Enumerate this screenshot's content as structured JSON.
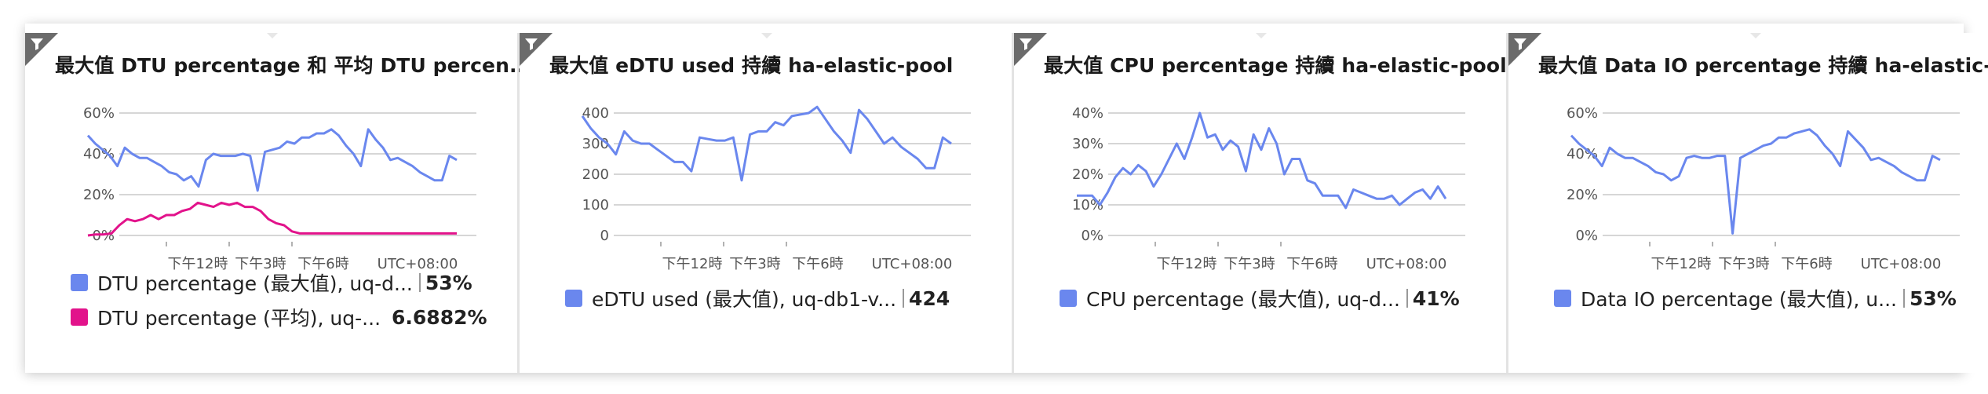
{
  "colors": {
    "blue": "#6a87ee",
    "magenta": "#e2138b"
  },
  "icons": {
    "filter": "filter-funnel-icon"
  },
  "tiles": [
    {
      "title": "最大值 DTU percentage 和 平均 DTU percen...",
      "legend": [
        {
          "label": "DTU percentage (最大值), uq-d...",
          "value": "53%",
          "color": "#6a87ee"
        },
        {
          "label": "DTU percentage (平均), uq-...",
          "value": "6.6882%",
          "color": "#e2138b"
        }
      ]
    },
    {
      "title": "最大值 eDTU used 持續 ha-elastic-pool",
      "legend": [
        {
          "label": "eDTU used (最大值), uq-db1-v...",
          "value": "424",
          "color": "#6a87ee"
        }
      ]
    },
    {
      "title": "最大值 CPU percentage 持續 ha-elastic-pool",
      "legend": [
        {
          "label": "CPU percentage (最大值), uq-d...",
          "value": "41%",
          "color": "#6a87ee"
        }
      ]
    },
    {
      "title": "最大值 Data IO percentage 持續 ha-elastic-...",
      "legend": [
        {
          "label": "Data IO percentage (最大值), u...",
          "value": "53%",
          "color": "#6a87ee"
        }
      ]
    }
  ],
  "chart_data": [
    {
      "type": "line",
      "yticks": [
        "60%",
        "40%",
        "20%",
        "0%"
      ],
      "ylim": [
        0,
        60
      ],
      "xticks": [
        "下午12時",
        "下午3時",
        "下午6時",
        "UTC+08:00"
      ],
      "series": [
        {
          "name": "DTU percentage (最大值), uq-d...",
          "color": "#6a87ee",
          "values": [
            49,
            45,
            42,
            39,
            34,
            43,
            40,
            38,
            38,
            36,
            34,
            31,
            30,
            27,
            29,
            24,
            37,
            40,
            39,
            39,
            39,
            40,
            39,
            22,
            41,
            42,
            43,
            46,
            45,
            48,
            48,
            50,
            50,
            52,
            49,
            44,
            40,
            34,
            52,
            47,
            43,
            37,
            38,
            36,
            34,
            31,
            29,
            27,
            27,
            39,
            37
          ]
        },
        {
          "name": "DTU percentage (平均), uq-...",
          "color": "#e2138b",
          "values": [
            0,
            0.5,
            0.5,
            1,
            5,
            8,
            7,
            8,
            10,
            8,
            10,
            10,
            12,
            13,
            16,
            15,
            14,
            16,
            15,
            16,
            14,
            14,
            12,
            8,
            6,
            5,
            2,
            1,
            1,
            1,
            1,
            1,
            1,
            1,
            1,
            1,
            1,
            1,
            1,
            1,
            1,
            1,
            1,
            1,
            1,
            1,
            1,
            1
          ]
        }
      ]
    },
    {
      "type": "line",
      "yticks": [
        "400",
        "300",
        "200",
        "100",
        "0"
      ],
      "ylim": [
        0,
        400
      ],
      "xticks": [
        "下午12時",
        "下午3時",
        "下午6時",
        "UTC+08:00"
      ],
      "series": [
        {
          "name": "eDTU used (最大值), uq-db1-v...",
          "color": "#6a87ee",
          "values": [
            390,
            350,
            320,
            300,
            265,
            340,
            310,
            300,
            300,
            280,
            260,
            240,
            240,
            210,
            320,
            315,
            310,
            310,
            320,
            180,
            330,
            340,
            340,
            370,
            360,
            390,
            395,
            400,
            420,
            380,
            340,
            310,
            270,
            410,
            380,
            340,
            300,
            320,
            290,
            270,
            250,
            220,
            220,
            320,
            300
          ]
        }
      ]
    },
    {
      "type": "line",
      "yticks": [
        "40%",
        "30%",
        "20%",
        "10%",
        "0%"
      ],
      "ylim": [
        0,
        40
      ],
      "xticks": [
        "下午12時",
        "下午3時",
        "下午6時",
        "UTC+08:00"
      ],
      "series": [
        {
          "name": "CPU percentage (最大值), uq-d...",
          "color": "#6a87ee",
          "values": [
            13,
            13,
            13,
            10,
            14,
            19,
            22,
            20,
            23,
            21,
            16,
            20,
            25,
            30,
            25,
            32,
            40,
            32,
            33,
            28,
            31,
            29,
            21,
            33,
            28,
            35,
            30,
            20,
            25,
            25,
            18,
            17,
            13,
            13,
            13,
            9,
            15,
            14,
            13,
            12,
            12,
            13,
            10,
            12,
            14,
            15,
            12,
            16,
            12
          ]
        }
      ]
    },
    {
      "type": "line",
      "yticks": [
        "60%",
        "40%",
        "20%",
        "0%"
      ],
      "ylim": [
        0,
        60
      ],
      "xticks": [
        "下午12時",
        "下午3時",
        "下午6時",
        "UTC+08:00"
      ],
      "series": [
        {
          "name": "Data IO percentage (最大值), u...",
          "color": "#6a87ee",
          "values": [
            49,
            45,
            42,
            39,
            34,
            43,
            40,
            38,
            38,
            36,
            34,
            31,
            30,
            27,
            29,
            38,
            39,
            38,
            38,
            39,
            39,
            1,
            38,
            40,
            42,
            44,
            45,
            48,
            48,
            50,
            51,
            52,
            49,
            44,
            40,
            34,
            51,
            47,
            43,
            37,
            38,
            36,
            34,
            31,
            29,
            27,
            27,
            39,
            37
          ]
        }
      ]
    }
  ]
}
